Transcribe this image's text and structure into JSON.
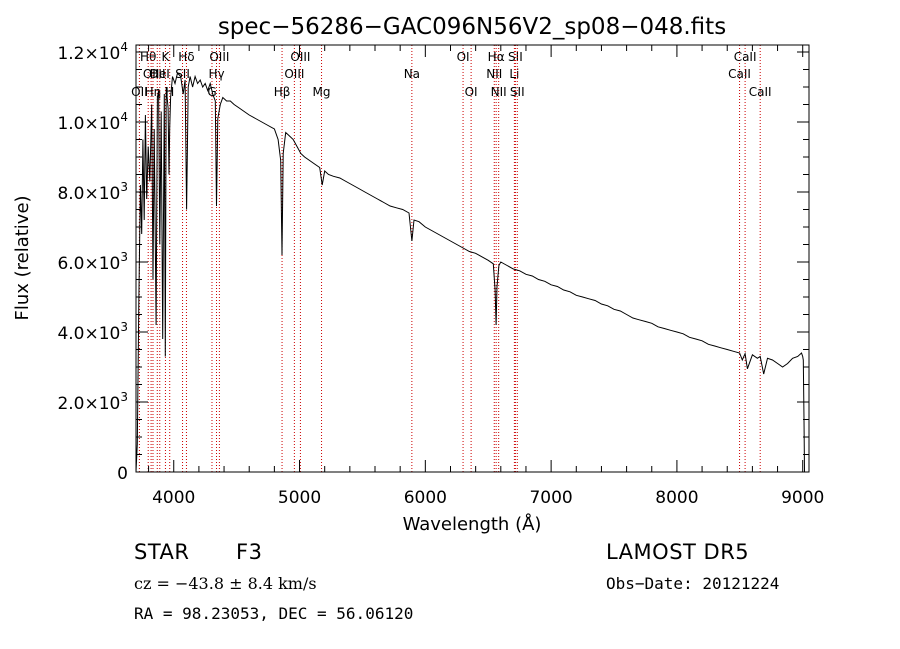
{
  "chart_data": {
    "type": "line",
    "title": "spec−56286−GAC096N56V2_sp08−048.fits",
    "xlabel": "Wavelength (Å)",
    "ylabel": "Flux (relative)",
    "xlim": [
      3700,
      9050
    ],
    "ylim": [
      0,
      12200
    ],
    "x_ticks": [
      4000,
      5000,
      6000,
      7000,
      8000,
      9000
    ],
    "x_tick_labels": [
      "4000",
      "5000",
      "6000",
      "7000",
      "8000",
      "9000"
    ],
    "y_ticks": [
      0,
      2000,
      4000,
      6000,
      8000,
      10000,
      12000
    ],
    "y_tick_labels": [
      {
        "mant": "0",
        "exp": ""
      },
      {
        "mant": "2.0×10",
        "exp": "3"
      },
      {
        "mant": "4.0×10",
        "exp": "3"
      },
      {
        "mant": "6.0×10",
        "exp": "3"
      },
      {
        "mant": "8.0×10",
        "exp": "3"
      },
      {
        "mant": "1.0×10",
        "exp": "4"
      },
      {
        "mant": "1.2×10",
        "exp": "4"
      }
    ],
    "grid": false,
    "line_color": "#000000",
    "marker_color": "#cc0000",
    "series": [
      {
        "x": [
          3700,
          3710,
          3722,
          3735,
          3745,
          3755,
          3765,
          3775,
          3785,
          3797,
          3810,
          3825,
          3835,
          3845,
          3860,
          3870,
          3880,
          3889,
          3900,
          3912,
          3925,
          3933,
          3940,
          3955,
          3962,
          3968,
          3975,
          3990,
          4010,
          4030,
          4055,
          4075,
          4090,
          4102,
          4115,
          4130,
          4150,
          4170,
          4190,
          4210,
          4230,
          4250,
          4270,
          4290,
          4310,
          4330,
          4340,
          4350,
          4370,
          4390,
          4420,
          4450,
          4480,
          4520,
          4560,
          4600,
          4650,
          4700,
          4750,
          4800,
          4830,
          4850,
          4861,
          4870,
          4890,
          4920,
          4950,
          4980,
          5010,
          5040,
          5080,
          5120,
          5160,
          5180,
          5200,
          5230,
          5270,
          5320,
          5370,
          5420,
          5470,
          5520,
          5570,
          5620,
          5670,
          5720,
          5770,
          5820,
          5870,
          5893,
          5910,
          5950,
          6000,
          6050,
          6100,
          6150,
          6200,
          6250,
          6300,
          6350,
          6400,
          6450,
          6500,
          6540,
          6555,
          6563,
          6570,
          6585,
          6600,
          6650,
          6700,
          6750,
          6800,
          6850,
          6900,
          6950,
          7000,
          7050,
          7100,
          7150,
          7200,
          7250,
          7300,
          7350,
          7400,
          7450,
          7500,
          7550,
          7600,
          7650,
          7700,
          7750,
          7800,
          7850,
          7900,
          7950,
          8000,
          8050,
          8100,
          8150,
          8200,
          8250,
          8300,
          8350,
          8400,
          8450,
          8498,
          8520,
          8542,
          8560,
          8600,
          8640,
          8662,
          8690,
          8720,
          8760,
          8800,
          8840,
          8880,
          8920,
          8960,
          8990,
          9000,
          9005,
          9010,
          9014
        ],
        "y": [
          0,
          800,
          4800,
          8200,
          6800,
          9500,
          7200,
          10200,
          7800,
          9300,
          8300,
          10500,
          5500,
          9800,
          4200,
          10700,
          10900,
          6500,
          10300,
          3800,
          10800,
          3300,
          11000,
          10400,
          8500,
          9800,
          10700,
          11300,
          11100,
          11400,
          11300,
          10800,
          11200,
          7500,
          11000,
          11300,
          11000,
          11300,
          11100,
          11200,
          11000,
          11100,
          10900,
          11100,
          10800,
          10600,
          7600,
          10100,
          10500,
          10700,
          10600,
          10600,
          10500,
          10400,
          10300,
          10200,
          10100,
          10000,
          9900,
          9800,
          9500,
          8900,
          6200,
          9100,
          9700,
          9600,
          9500,
          9300,
          9100,
          9000,
          8900,
          8800,
          8700,
          8200,
          8600,
          8500,
          8450,
          8400,
          8300,
          8200,
          8100,
          8000,
          7900,
          7800,
          7700,
          7600,
          7550,
          7500,
          7400,
          6600,
          7200,
          7150,
          7000,
          6900,
          6800,
          6700,
          6600,
          6500,
          6400,
          6300,
          6250,
          6150,
          6050,
          5950,
          5200,
          4200,
          5300,
          5900,
          6000,
          5900,
          5800,
          5750,
          5650,
          5600,
          5500,
          5450,
          5350,
          5300,
          5200,
          5150,
          5050,
          5000,
          4950,
          4900,
          4800,
          4750,
          4650,
          4600,
          4500,
          4400,
          4350,
          4300,
          4250,
          4150,
          4100,
          4050,
          4000,
          3950,
          3850,
          3800,
          3750,
          3650,
          3600,
          3550,
          3500,
          3450,
          3400,
          3200,
          3380,
          2950,
          3350,
          3250,
          3300,
          2800,
          3250,
          3200,
          3100,
          3000,
          3100,
          3250,
          3300,
          3400,
          3300,
          3200,
          1500,
          0
        ]
      }
    ],
    "markers": [
      {
        "x": 3727,
        "label": "OII",
        "row": 2
      },
      {
        "x": 3797,
        "label": "Hθ",
        "row": 0
      },
      {
        "x": 3820,
        "label": "OII",
        "row": 1
      },
      {
        "x": 3835,
        "label": "Hη",
        "row": 2
      },
      {
        "x": 3869,
        "label": "OII",
        "row": 1
      },
      {
        "x": 3889,
        "label": "HeI",
        "row": 1
      },
      {
        "x": 3934,
        "label": "K",
        "row": 0
      },
      {
        "x": 3968,
        "label": "H",
        "row": 2
      },
      {
        "x": 4070,
        "label": "SII",
        "row": 1
      },
      {
        "x": 4101,
        "label": "Hδ",
        "row": 0
      },
      {
        "x": 4304,
        "label": "G",
        "row": 2
      },
      {
        "x": 4340,
        "label": "Hγ",
        "row": 1
      },
      {
        "x": 4363,
        "label": "OIII",
        "row": 0
      },
      {
        "x": 4861,
        "label": "Hβ",
        "row": 2
      },
      {
        "x": 4959,
        "label": "OIII",
        "row": 1
      },
      {
        "x": 5007,
        "label": "OIII",
        "row": 0
      },
      {
        "x": 5175,
        "label": "Mg",
        "row": 2
      },
      {
        "x": 5893,
        "label": "Na",
        "row": 1
      },
      {
        "x": 6300,
        "label": "OI",
        "row": 0
      },
      {
        "x": 6364,
        "label": "OI",
        "row": 2
      },
      {
        "x": 6548,
        "label": "NII",
        "row": 1
      },
      {
        "x": 6563,
        "label": "Hα",
        "row": 0
      },
      {
        "x": 6583,
        "label": "NII",
        "row": 2
      },
      {
        "x": 6708,
        "label": "Li",
        "row": 1
      },
      {
        "x": 6716,
        "label": "SII",
        "row": 0
      },
      {
        "x": 6731,
        "label": "SII",
        "row": 2
      },
      {
        "x": 8498,
        "label": "CaII",
        "row": 1
      },
      {
        "x": 8542,
        "label": "CaII",
        "row": 0
      },
      {
        "x": 8662,
        "label": "CaII",
        "row": 2
      }
    ]
  },
  "info": {
    "object_class": "STAR",
    "subclass": "F3",
    "survey": "LAMOST DR5",
    "cz": "cz = −43.8 ± 8.4 km/s",
    "obs_date": "Obs−Date: 20121224",
    "radec": "RA =  98.23053, DEC =  56.06120"
  }
}
